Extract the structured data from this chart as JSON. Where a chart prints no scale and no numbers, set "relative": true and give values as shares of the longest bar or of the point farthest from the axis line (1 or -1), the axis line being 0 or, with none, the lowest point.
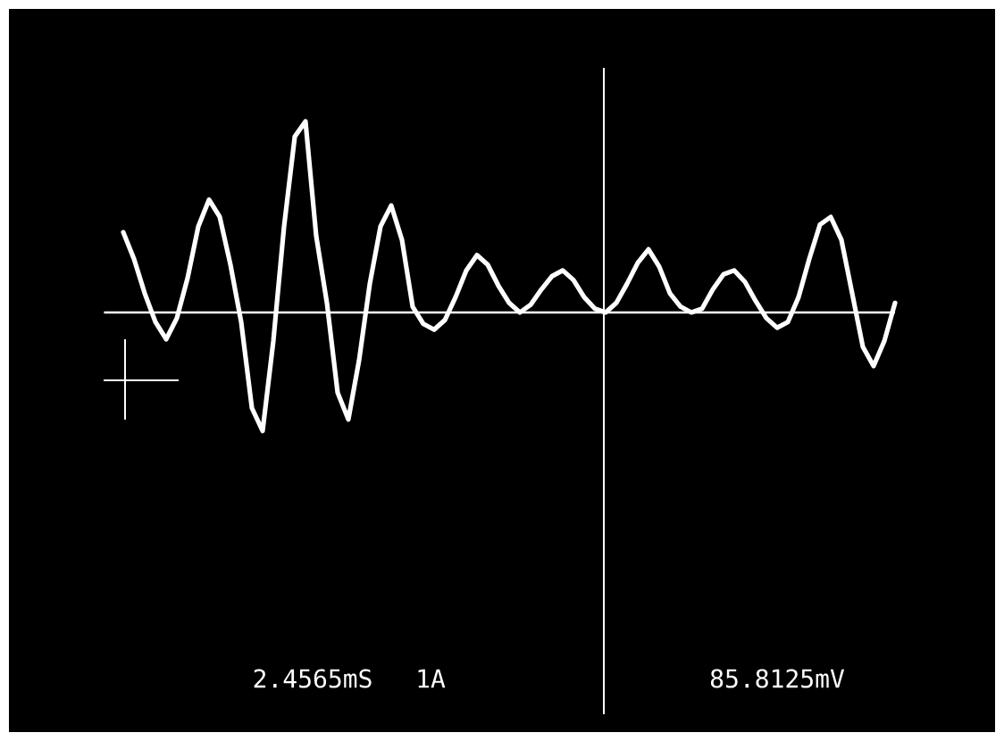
{
  "chart_data": {
    "type": "line",
    "relative": true,
    "categories": [
      null,
      null,
      null,
      null,
      null,
      null,
      null,
      null,
      null,
      null,
      null,
      null,
      null,
      null,
      null,
      null,
      null,
      null,
      null,
      null,
      null,
      null,
      null,
      null,
      null,
      null,
      null,
      null,
      null,
      null,
      null,
      null,
      null,
      null,
      null,
      null,
      null,
      null,
      null,
      null,
      null,
      null,
      null,
      null,
      null,
      null,
      null,
      null,
      null,
      null,
      null,
      null,
      null,
      null,
      null,
      null,
      null,
      null,
      null,
      null,
      null,
      null,
      null,
      null,
      null,
      null,
      null,
      null,
      null,
      null,
      null,
      null,
      null
    ],
    "series": [
      {
        "color": "#ffffff",
        "values": [
          0.42,
          0.28,
          0.1,
          -0.05,
          -0.14,
          -0.03,
          0.18,
          0.45,
          0.59,
          0.5,
          0.25,
          -0.05,
          -0.5,
          -0.62,
          -0.15,
          0.45,
          0.92,
          1.0,
          0.4,
          0.05,
          -0.42,
          -0.56,
          -0.25,
          0.15,
          0.45,
          0.56,
          0.38,
          0.03,
          -0.06,
          -0.09,
          -0.04,
          0.08,
          0.22,
          0.3,
          0.25,
          0.14,
          0.05,
          0.0,
          0.04,
          0.12,
          0.19,
          0.22,
          0.17,
          0.08,
          0.02,
          0.0,
          0.05,
          0.15,
          0.26,
          0.33,
          0.24,
          0.1,
          0.03,
          0.0,
          0.02,
          0.12,
          0.2,
          0.22,
          0.16,
          0.06,
          -0.03,
          -0.08,
          -0.05,
          0.08,
          0.28,
          0.46,
          0.5,
          0.38,
          0.1,
          -0.18,
          -0.28,
          -0.15,
          0.05
        ]
      }
    ],
    "annotations": [
      "2.4565mS",
      "1A",
      "85.8125mV"
    ],
    "marker": "none",
    "line_style": "solid"
  }
}
